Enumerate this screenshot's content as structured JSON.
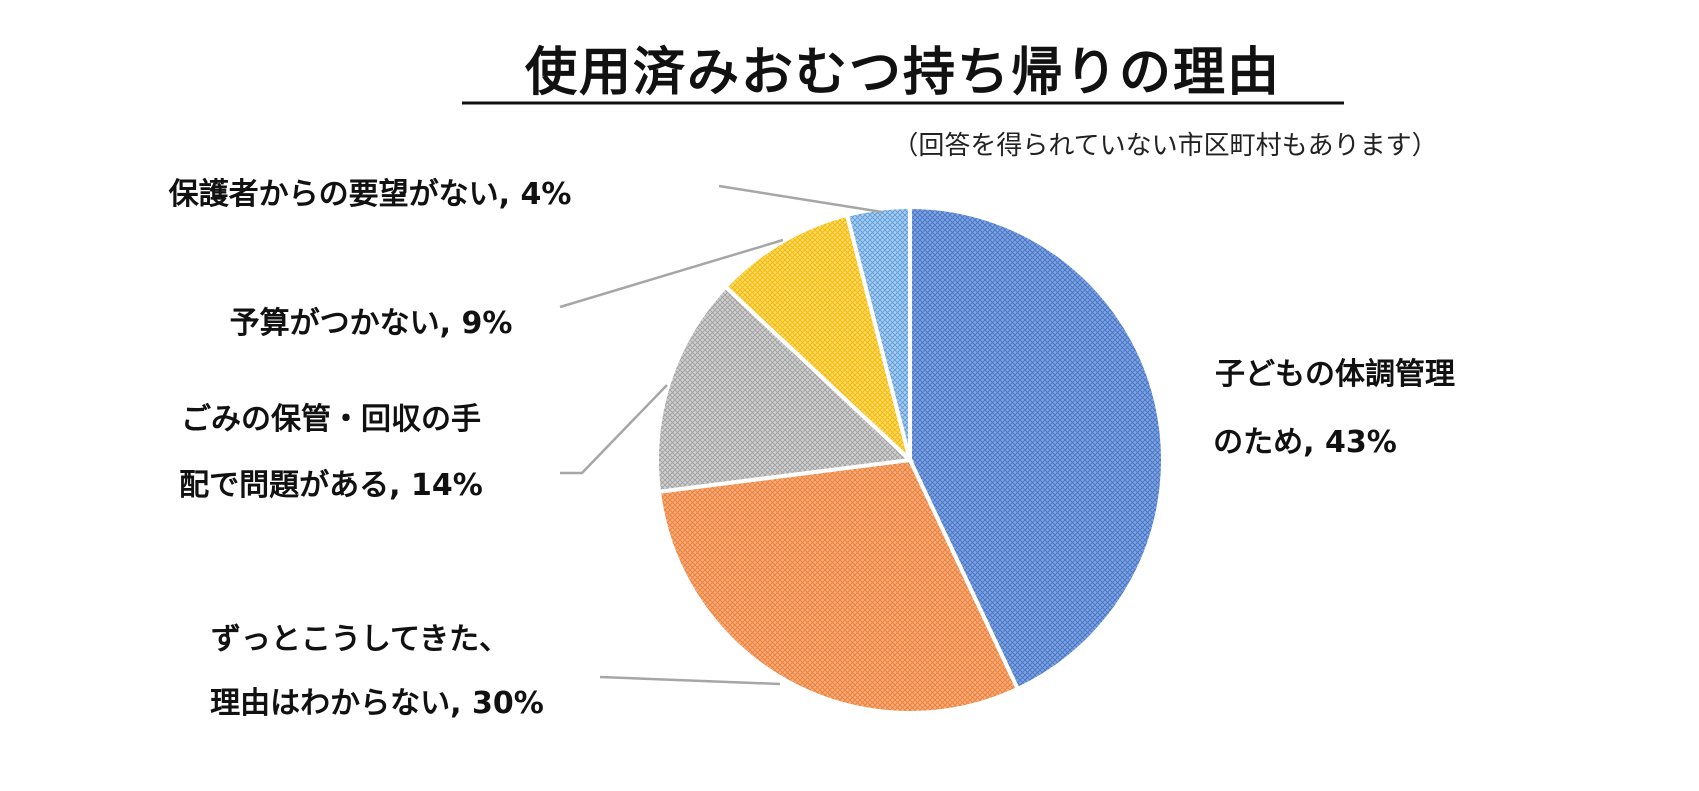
{
  "chart_data": {
    "type": "pie",
    "title": "使用済みおむつ持ち帰りの理由",
    "subtitle": "（回答を得られていない市区町村もあります）",
    "legend": "none",
    "start_angle_deg": 0,
    "direction": "clockwise",
    "slices": [
      {
        "label_lines": [
          "子どもの体調管理",
          "のため, 43%"
        ],
        "category": "子どもの体調管理のため",
        "value": 43,
        "color": "#7fa3e0",
        "hatch": "#4472c4"
      },
      {
        "label_lines": [
          "ずっとこうしてきた、",
          "理由はわからない, 30%"
        ],
        "category": "ずっとこうしてきた、理由はわからない",
        "value": 30,
        "color": "#f6ac7e",
        "hatch": "#ed7d31"
      },
      {
        "label_lines": [
          "ごみの保管・回収の手",
          "配で問題がある, 14%"
        ],
        "category": "ごみの保管・回収の手配で問題がある",
        "value": 14,
        "color": "#d0d0d0",
        "hatch": "#9e9e9e"
      },
      {
        "label_lines": [
          "予算がつかない, 9%"
        ],
        "category": "予算がつかない",
        "value": 9,
        "color": "#ffd966",
        "hatch": "#f2b800"
      },
      {
        "label_lines": [
          "保護者からの要望がない, 4%"
        ],
        "category": "保護者からの要望がない",
        "value": 4,
        "color": "#a9cdf2",
        "hatch": "#5b9bd5"
      }
    ]
  }
}
